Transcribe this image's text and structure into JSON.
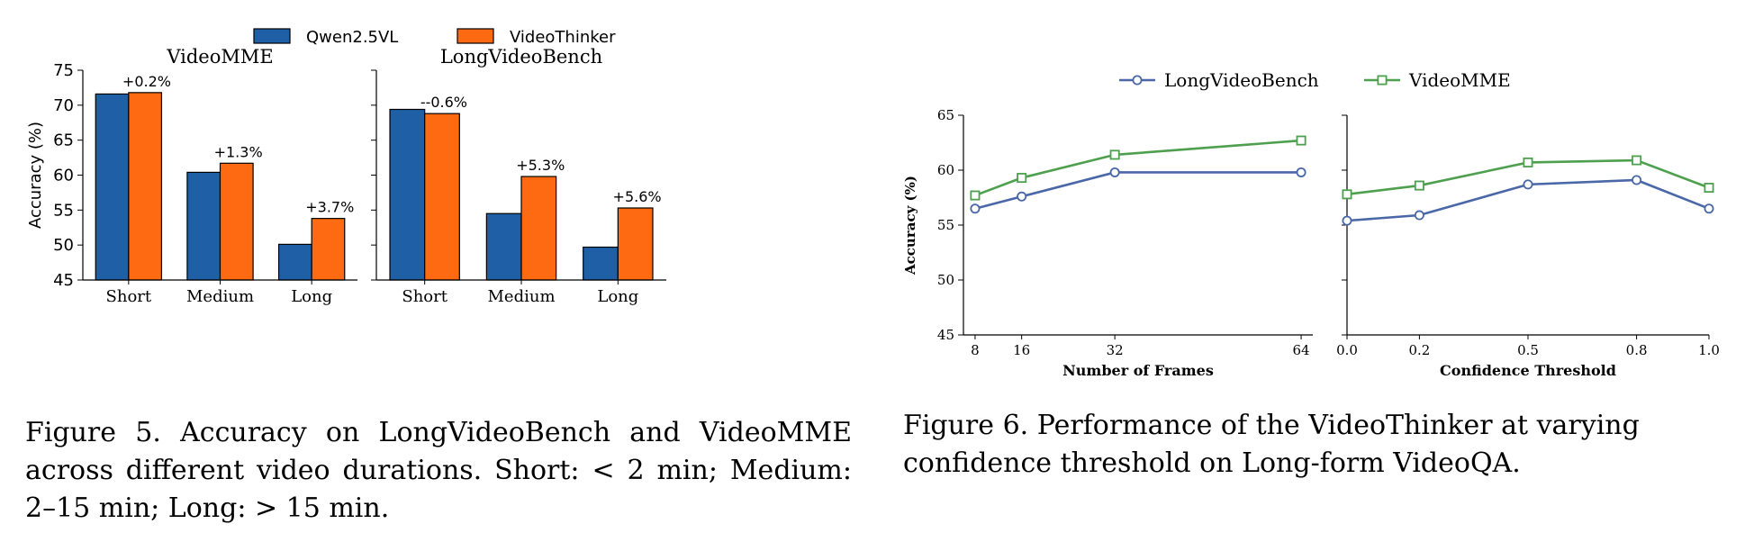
{
  "chart_data": [
    {
      "type": "bar",
      "title": "VideoMME",
      "categories": [
        "Short",
        "Medium",
        "Long"
      ],
      "series": [
        {
          "name": "Qwen2.5VL",
          "color": "#1f5fa6",
          "values": [
            71.6,
            60.4,
            50.1
          ]
        },
        {
          "name": "VideoThinker",
          "color": "#fd6a12",
          "values": [
            71.8,
            61.7,
            53.8
          ]
        }
      ],
      "annotations": [
        "+0.2%",
        "+1.3%",
        "+3.7%"
      ],
      "ylabel": "Accuracy (%)",
      "xlabel": "",
      "ylim": [
        45,
        75
      ],
      "yticks": [
        45,
        50,
        55,
        60,
        65,
        70,
        75
      ],
      "legend": "top-center"
    },
    {
      "type": "bar",
      "title": "LongVideoBench",
      "categories": [
        "Short",
        "Medium",
        "Long"
      ],
      "series": [
        {
          "name": "Qwen2.5VL",
          "color": "#1f5fa6",
          "values": [
            69.4,
            54.5,
            49.7
          ]
        },
        {
          "name": "VideoThinker",
          "color": "#fd6a12",
          "values": [
            68.8,
            59.8,
            55.3
          ]
        }
      ],
      "annotations": [
        "--0.6%",
        "+5.3%",
        "+5.6%"
      ],
      "ylabel": "",
      "xlabel": "",
      "ylim": [
        45,
        75
      ],
      "yticks": [
        45,
        50,
        55,
        60,
        65,
        70,
        75
      ]
    },
    {
      "type": "line",
      "title": "",
      "x": [
        8,
        16,
        32,
        64
      ],
      "xticks": [
        "8",
        "16",
        "32",
        "64"
      ],
      "series": [
        {
          "name": "LongVideoBench",
          "color": "#4a67a8",
          "marker": "circle",
          "values": [
            56.5,
            57.6,
            59.8,
            59.8
          ]
        },
        {
          "name": "VideoMME",
          "color": "#4ea04f",
          "marker": "square",
          "values": [
            57.7,
            59.3,
            61.4,
            62.7
          ]
        }
      ],
      "xlabel": "Number of Frames",
      "ylabel": "Accuracy (%)",
      "xlim": [
        6,
        66
      ],
      "ylim": [
        45,
        65
      ],
      "yticks": [
        45,
        50,
        55,
        60,
        65
      ],
      "legend": "top-center"
    },
    {
      "type": "line",
      "title": "",
      "x": [
        0.0,
        0.2,
        0.5,
        0.8,
        1.0
      ],
      "xticks": [
        "0.0",
        "0.2",
        "0.5",
        "0.8",
        "1.0"
      ],
      "series": [
        {
          "name": "LongVideoBench",
          "color": "#4a67a8",
          "marker": "circle",
          "values": [
            55.4,
            55.9,
            58.7,
            59.1,
            56.5
          ]
        },
        {
          "name": "VideoMME",
          "color": "#4ea04f",
          "marker": "square",
          "values": [
            57.8,
            58.6,
            60.7,
            60.9,
            58.4
          ]
        }
      ],
      "xlabel": "Confidence Threshold",
      "ylabel": "",
      "xlim": [
        0.0,
        1.0
      ],
      "ylim": [
        45,
        65
      ],
      "yticks": [
        45,
        50,
        55,
        60,
        65
      ]
    }
  ],
  "captions": {
    "figure5": "Figure 5.  Accuracy on LongVideoBench and VideoMME across different video durations.  Short: < 2 min; Medium: 2–15 min; Long: > 15 min.",
    "figure6": "Figure 6. Performance of the VideoThinker at varying confidence threshold on Long-form VideoQA."
  }
}
